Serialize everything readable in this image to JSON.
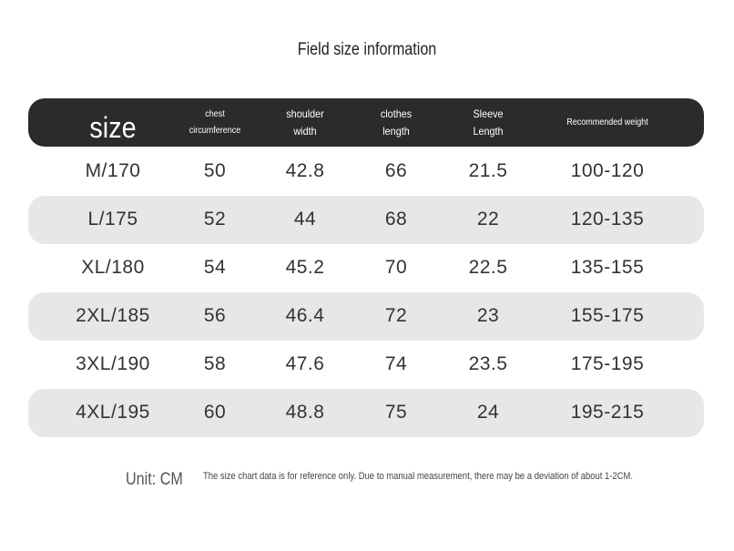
{
  "title": "Field size information",
  "table": {
    "header": [
      [
        "size"
      ],
      [
        "chest",
        "circumference"
      ],
      [
        "shoulder",
        "width"
      ],
      [
        "clothes",
        "length"
      ],
      [
        "Sleeve",
        "Length"
      ],
      [
        "Recommended weight"
      ]
    ],
    "rows": [
      [
        "M/170",
        "50",
        "42.8",
        "66",
        "21.5",
        "100-120"
      ],
      [
        "L/175",
        "52",
        "44",
        "68",
        "22",
        "120-135"
      ],
      [
        "XL/180",
        "54",
        "45.2",
        "70",
        "22.5",
        "135-155"
      ],
      [
        "2XL/185",
        "56",
        "46.4",
        "72",
        "23",
        "155-175"
      ],
      [
        "3XL/190",
        "58",
        "47.6",
        "74",
        "23.5",
        "175-195"
      ],
      [
        "4XL/195",
        "60",
        "48.8",
        "75",
        "24",
        "195-215"
      ]
    ]
  },
  "footer": {
    "unit": "Unit: CM",
    "note": "The size chart data is for reference only. Due to manual measurement, there may be a deviation of about 1-2CM."
  }
}
